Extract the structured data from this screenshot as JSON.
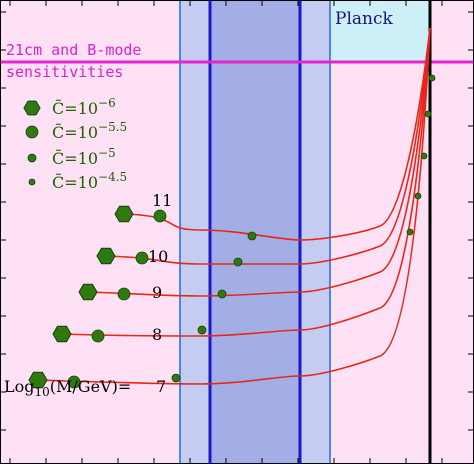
{
  "chart_data": {
    "type": "line",
    "title": "",
    "xlabel": "",
    "ylabel": "",
    "mass_label": "Log10(M/GeV)=",
    "mass_label_parts": {
      "prefix": "Log",
      "sub": "10",
      "suffix": "(M/GeV)="
    },
    "region_labels": {
      "planck": "Planck",
      "sensitivity": [
        "21cm and B-mode",
        "sensitivities"
      ]
    },
    "legend": {
      "placement": "top-left",
      "entries": [
        {
          "prefix": "C̃=10",
          "exponent": "−6"
        },
        {
          "prefix": "C̃=10",
          "exponent": "−5.5"
        },
        {
          "prefix": "C̃=10",
          "exponent": "−5"
        },
        {
          "prefix": "C̃=10",
          "exponent": "−4.5"
        }
      ]
    },
    "series": [
      {
        "name": "7",
        "points": [
          [
            0.02,
            0.2
          ],
          [
            0.4,
            0.28
          ],
          [
            0.6,
            0.4
          ],
          [
            0.8,
            0.62
          ],
          [
            0.91,
            0.98
          ]
        ],
        "markers": [
          [
            0.072,
            0.9
          ],
          [
            0.157,
            0.89
          ],
          [
            0.376,
            0.18
          ],
          [
            0.872,
            0.74
          ]
        ]
      },
      {
        "name": "8",
        "points": [
          [
            0.1,
            0.52
          ],
          [
            0.4,
            0.5
          ],
          [
            0.6,
            0.52
          ],
          [
            0.8,
            0.7
          ],
          [
            0.91,
            0.98
          ]
        ],
        "markers": [
          [
            0.131,
            0.8
          ],
          [
            0.207,
            0.77
          ],
          [
            0.428,
            0.33
          ],
          [
            0.885,
            0.78
          ]
        ]
      },
      {
        "name": "9",
        "points": [
          [
            0.15,
            0.76
          ],
          [
            0.4,
            0.68
          ],
          [
            0.6,
            0.68
          ],
          [
            0.8,
            0.78
          ],
          [
            0.91,
            0.98
          ]
        ],
        "markers": [
          [
            0.182,
            0.7
          ],
          [
            0.26,
            0.68
          ],
          [
            0.467,
            0.48
          ],
          [
            0.898,
            0.82
          ]
        ]
      },
      {
        "name": "10",
        "points": [
          [
            0.2,
            0.9
          ],
          [
            0.4,
            0.82
          ],
          [
            0.6,
            0.8
          ],
          [
            0.8,
            0.86
          ],
          [
            0.91,
            0.98
          ]
        ],
        "markers": [
          [
            0.22,
            0.6
          ],
          [
            0.3,
            0.57
          ],
          [
            0.503,
            0.56
          ],
          [
            0.901,
            0.87
          ]
        ]
      },
      {
        "name": "11",
        "points": [
          [
            0.24,
            1.0
          ],
          [
            0.4,
            0.95
          ],
          [
            0.6,
            0.93
          ],
          [
            0.8,
            0.94
          ],
          [
            0.91,
            0.98
          ]
        ],
        "markers": [
          [
            0.263,
            0.55
          ],
          [
            0.335,
            0.53
          ],
          [
            0.534,
            0.76
          ],
          [
            0.905,
            0.93
          ]
        ]
      }
    ],
    "colors": {
      "frame": "#000000",
      "curve": "#e8261a",
      "marker_fill": "#2f7a10",
      "marker_edge": "#1b3f05",
      "legend_text": "#206000",
      "sens_region": "#ffe1f6",
      "sens_line": "#e623cf",
      "sens_text": "#e01fd0",
      "planck_region": "#cdeff8",
      "planck_text": "#16167c",
      "band_outer": "#c5ccf2",
      "band_inner": "#a3aee6",
      "band_line_light": "#4f86de",
      "band_line_dark": "#1a1ac8",
      "vertical_black": "#000000"
    }
  }
}
